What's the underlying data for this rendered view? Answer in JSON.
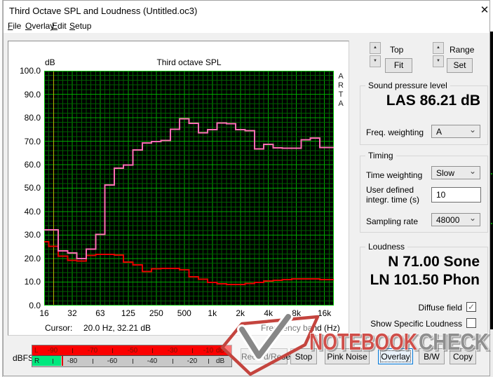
{
  "window": {
    "title": "Third Octave SPL and Loudness (Untitled.oc3)",
    "close_glyph": "✕"
  },
  "menu": {
    "items": [
      {
        "label": "File"
      },
      {
        "label": "Overlay"
      },
      {
        "label": "Edit"
      },
      {
        "label": "Setup"
      }
    ]
  },
  "chart": {
    "unit_label": "dB",
    "title": "Third octave SPL",
    "corner_mark": "ARTA",
    "y_ticks": [
      "100.0",
      "90.0",
      "80.0",
      "70.0",
      "60.0",
      "50.0",
      "40.0",
      "30.0",
      "20.0",
      "10.0",
      "0.0"
    ],
    "x_ticks": [
      "16",
      "32",
      "63",
      "125",
      "250",
      "500",
      "1k",
      "2k",
      "4k",
      "8k",
      "16k"
    ],
    "cursor_label": "Cursor:",
    "cursor_value": "20.0 Hz, 32.21 dB",
    "x_axis_label": "Frequency band (Hz)"
  },
  "chart_data": {
    "type": "line",
    "title": "Third octave SPL",
    "xlabel": "Frequency band (Hz)",
    "ylabel": "dB",
    "ylim": [
      0,
      100
    ],
    "grid": true,
    "categories": [
      "16",
      "20",
      "25",
      "31.5",
      "40",
      "50",
      "63",
      "80",
      "100",
      "125",
      "160",
      "200",
      "250",
      "315",
      "400",
      "500",
      "630",
      "800",
      "1k",
      "1.25k",
      "1.6k",
      "2k",
      "2.5k",
      "3.15k",
      "4k",
      "5k",
      "6.3k",
      "8k",
      "10k",
      "12.5k",
      "16k"
    ],
    "series": [
      {
        "name": "Third octave SPL (signal)",
        "color": "#ff6eb4",
        "values": [
          32.2,
          32.2,
          23.3,
          22.4,
          20.0,
          24.0,
          30.3,
          51.3,
          58.5,
          59.8,
          66.3,
          69.3,
          69.9,
          70.3,
          75.1,
          79.5,
          77.6,
          73.6,
          74.9,
          77.7,
          77.5,
          75.0,
          74.5,
          66.7,
          68.7,
          67.2,
          67.0,
          67.0,
          70.6,
          71.3,
          67.3
        ]
      },
      {
        "name": "Noise floor (overlay)",
        "color": "#e60000",
        "values": [
          27.2,
          25.2,
          21.0,
          19.3,
          19.0,
          21.3,
          21.8,
          21.8,
          21.5,
          18.5,
          17.3,
          14.5,
          15.6,
          15.8,
          15.8,
          15.2,
          12.2,
          11.2,
          9.8,
          9.2,
          9.0,
          9.0,
          9.4,
          9.8,
          10.4,
          10.8,
          11.1,
          11.3,
          11.4,
          11.4,
          11.1
        ]
      }
    ],
    "cursor": {
      "hz": "20.0",
      "db": 32.21,
      "band_index": 1
    }
  },
  "side_panel": {
    "top_label": "Top",
    "fit_button": "Fit",
    "range_label": "Range",
    "set_button": "Set",
    "spl_group": {
      "title": "Sound pressure level",
      "value": "LAS 86.21 dB",
      "freq_weighting_label": "Freq. weighting",
      "freq_weighting_value": "A"
    },
    "timing_group": {
      "title": "Timing",
      "time_weighting_label": "Time weighting",
      "time_weighting_value": "Slow",
      "integr_label_line1": "User defined",
      "integr_label_line2": "integr. time (s)",
      "integr_value": "10",
      "sampling_label": "Sampling rate",
      "sampling_value": "48000"
    },
    "loudness_group": {
      "title": "Loudness",
      "sone_value": "N 71.00 Sone",
      "phon_value": "LN 101.50 Phon",
      "diffuse_label": "Diffuse field",
      "diffuse_checked": true,
      "specific_label": "Show Specific Loudness",
      "specific_checked": false
    }
  },
  "meter": {
    "label": "dBFS",
    "left_scale": [
      "L",
      "-90",
      "-70",
      "-50",
      "-30",
      "-10",
      "dB"
    ],
    "right_scale": [
      "R",
      "-80",
      "-60",
      "-40",
      "-20",
      "dB"
    ],
    "left_bar_color": "#fb0000",
    "right_fill_color": "#00e87e"
  },
  "buttons": [
    {
      "label": "Record/Reset"
    },
    {
      "label": "Stop"
    },
    {
      "label": "Pink Noise"
    },
    {
      "label": "Overlay",
      "focused": true
    },
    {
      "label": "B/W"
    },
    {
      "label": "Copy"
    }
  ],
  "watermark": {
    "red_text": "NOTEBOOK",
    "gray_text": "CHECK"
  },
  "icons": {
    "spin_up": "▲",
    "spin_down": "▼",
    "combo_chevron": "⌄",
    "checkbox_check": "✓",
    "watermark_check": "check-mark"
  },
  "colors": {
    "plot_bg": "#000000",
    "grid_minor": "#005f00",
    "grid_major": "#00a800",
    "plot_border": "#00c800",
    "cursor_line": "#b8b400",
    "series_pink": "#ff6eb4",
    "series_red": "#e60000",
    "focus_blue": "#0078d7",
    "meter_gray": "#c8c8c8",
    "watermark_red": "#cf4f4a",
    "watermark_gray": "#8f8f8f"
  }
}
